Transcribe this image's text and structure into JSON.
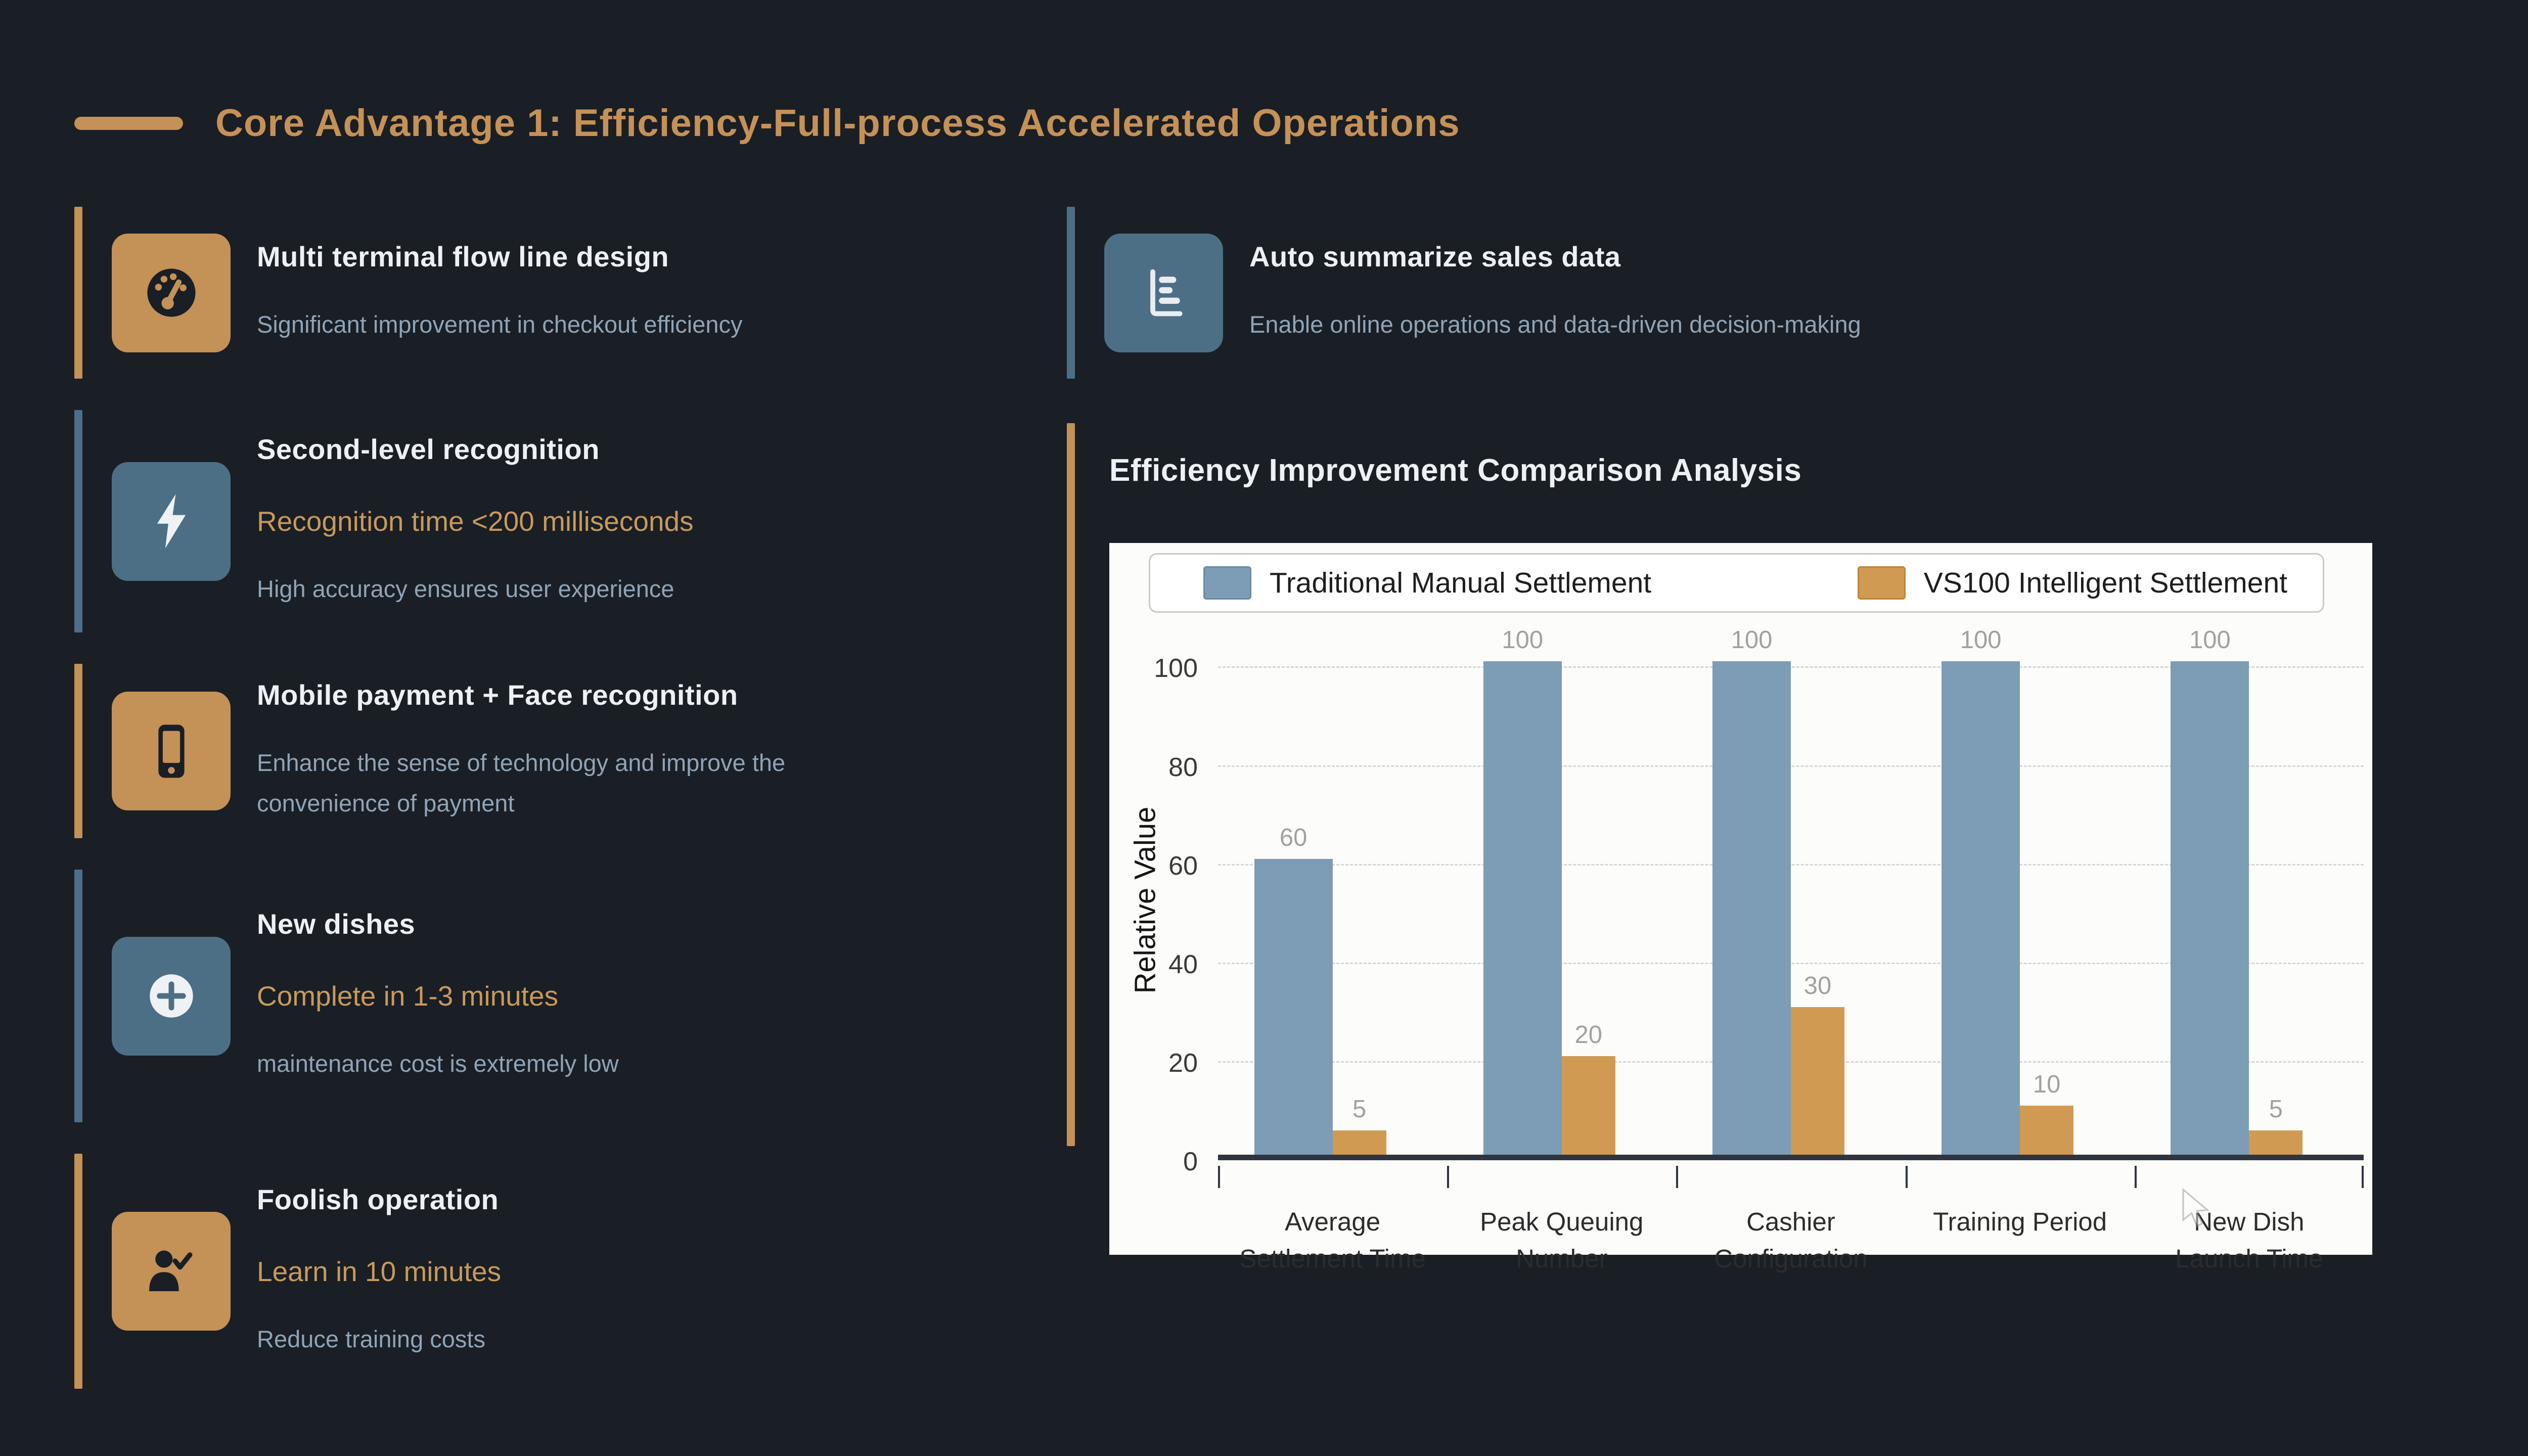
{
  "page": {
    "title": "Core Advantage 1: Efficiency-Full-process Accelerated Operations",
    "background_color": "#1a1e25",
    "accent_gold": "#c49157",
    "accent_blue": "#4d6f86",
    "title_color": "#c49157",
    "heading_text_color": "#eef1f3",
    "subtitle_text_color": "#8fa4b6",
    "highlight_text_color": "#c79a5c"
  },
  "features_left": [
    {
      "icon": "gauge-icon",
      "variant": "gold",
      "title": "Multi terminal flow line design",
      "subtitle": "Significant improvement in checkout efficiency"
    },
    {
      "icon": "bolt-icon",
      "variant": "blue",
      "title": "Second-level recognition",
      "highlight": "Recognition time <200 milliseconds",
      "subtitle": "High accuracy ensures user experience"
    },
    {
      "icon": "mobile-icon",
      "variant": "gold",
      "title": "Mobile payment + Face recognition",
      "subtitle": "Enhance the sense of technology and improve the convenience of payment"
    },
    {
      "icon": "plus-circle-icon",
      "variant": "blue",
      "title": "New dishes",
      "highlight": "Complete in 1-3 minutes",
      "subtitle": "maintenance cost is extremely low"
    },
    {
      "icon": "user-check-icon",
      "variant": "gold",
      "title": "Foolish operation",
      "highlight": "Learn in 10 minutes",
      "subtitle": "Reduce training costs"
    }
  ],
  "features_right": [
    {
      "icon": "horizontal-bar-chart-icon",
      "variant": "blue",
      "title": "Auto summarize sales data",
      "subtitle": "Enable online operations and data-driven decision-making"
    }
  ],
  "chart_section": {
    "title": "Efficiency Improvement Comparison Analysis"
  },
  "chart_data": {
    "type": "bar",
    "title": "Efficiency Improvement Comparison Analysis",
    "categories": [
      "Average Settlement Time",
      "Peak Queuing Number",
      "Cashier Configuration",
      "Training Period",
      "New Dish Launch Time"
    ],
    "categories_wrapped": [
      [
        "Average",
        "Settlement Time"
      ],
      [
        "Peak Queuing",
        "Number"
      ],
      [
        "Cashier",
        "Configuration"
      ],
      [
        "Training Period"
      ],
      [
        "New Dish",
        "Launch Time"
      ]
    ],
    "series": [
      {
        "name": "Traditional Manual Settlement",
        "color": "#7d9cb5",
        "swatch_border": "#6a8ba3",
        "values": [
          60,
          100,
          100,
          100,
          100
        ]
      },
      {
        "name": "VS100 Intelligent Settlement",
        "color": "#d19a52",
        "swatch_border": "#bd8539",
        "values": [
          5,
          20,
          30,
          10,
          5
        ]
      }
    ],
    "xlabel": "",
    "ylabel": "Relative Value",
    "yticks": [
      0,
      20,
      40,
      60,
      80,
      100
    ],
    "ylim": [
      0,
      100
    ],
    "grid": true,
    "grid_style": "dashed",
    "legend_position": "top",
    "plot_background": "#fcfcfa",
    "value_label_color": "#a1a1a1"
  }
}
